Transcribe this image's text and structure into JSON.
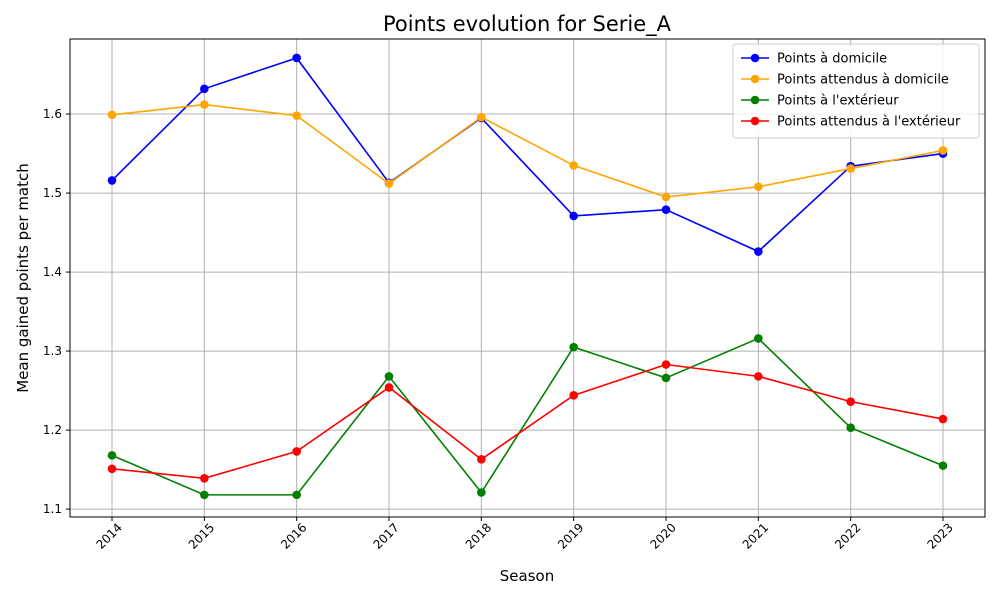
{
  "chart_data": {
    "type": "line",
    "title": "Points evolution for Serie_A",
    "xlabel": "Season",
    "ylabel": "Mean gained points per match",
    "categories": [
      "2014",
      "2015",
      "2016",
      "2017",
      "2018",
      "2019",
      "2020",
      "2021",
      "2022",
      "2023"
    ],
    "ylim": [
      1.09,
      1.695
    ],
    "yticks": [
      "1.1",
      "1.2",
      "1.3",
      "1.4",
      "1.5",
      "1.6"
    ],
    "grid": true,
    "legend_position": "top-right",
    "series": [
      {
        "name": "Points à domicile",
        "color": "#0000ff",
        "values": [
          1.516,
          1.632,
          1.671,
          1.513,
          1.595,
          1.471,
          1.479,
          1.426,
          1.534,
          1.55
        ]
      },
      {
        "name": "Points attendus à domicile",
        "color": "#ffa500",
        "values": [
          1.599,
          1.612,
          1.598,
          1.512,
          1.596,
          1.535,
          1.495,
          1.508,
          1.531,
          1.554
        ]
      },
      {
        "name": "Points à l'extérieur",
        "color": "#008000",
        "values": [
          1.168,
          1.118,
          1.118,
          1.268,
          1.121,
          1.305,
          1.266,
          1.316,
          1.203,
          1.155
        ]
      },
      {
        "name": "Points attendus à l'extérieur",
        "color": "#ff0000",
        "values": [
          1.151,
          1.139,
          1.173,
          1.254,
          1.163,
          1.244,
          1.283,
          1.268,
          1.236,
          1.214
        ]
      }
    ]
  }
}
